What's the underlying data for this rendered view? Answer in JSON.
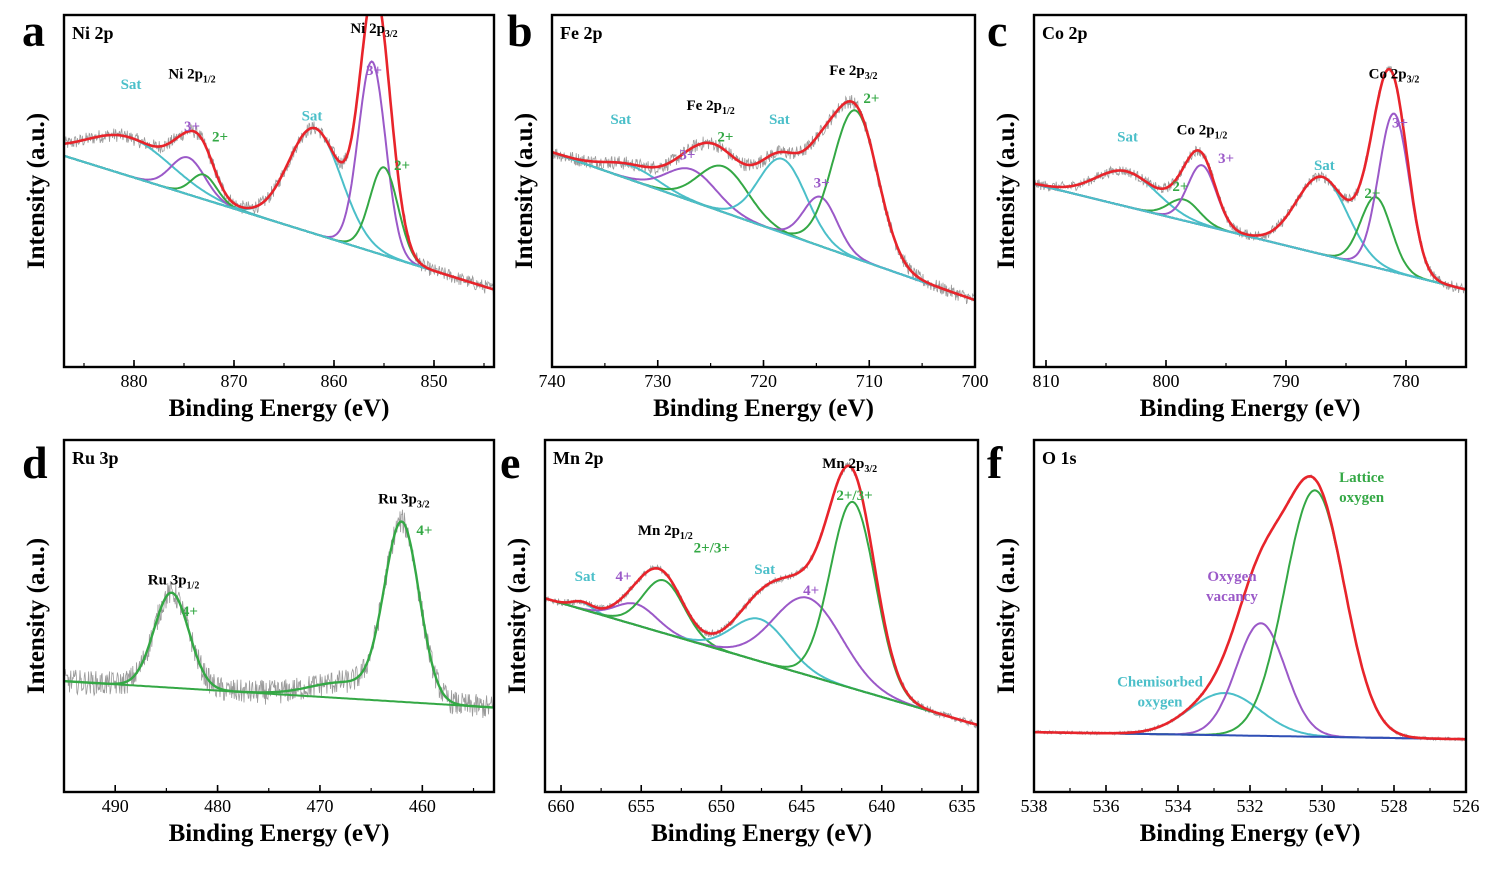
{
  "colors": {
    "envelope": "#e8242b",
    "purple": "#9b59c8",
    "green": "#34a845",
    "cyan": "#4bbfc9",
    "blue": "#2f4fb5",
    "raw": "#9a9a9a",
    "axis": "#000000"
  },
  "chart_data": [
    {
      "id": "a",
      "type": "line",
      "title": "Ni 2p",
      "xlabel": "Binding Energy (eV)",
      "ylabel": "Intensity (a.u.)",
      "xlim": [
        887,
        844
      ],
      "ylim": [
        0,
        1
      ],
      "xticks": [
        880,
        870,
        860,
        850
      ],
      "baseline": [
        [
          887,
          0.6
        ],
        [
          844,
          0.22
        ]
      ],
      "noise": 0.02,
      "components": [
        {
          "name": "Sat",
          "color": "cyan",
          "center": 880.5,
          "amp": 0.11,
          "fwhm": 10.0
        },
        {
          "name": "3+",
          "color": "purple",
          "center": 874.6,
          "amp": 0.105,
          "fwhm": 4.0
        },
        {
          "name": "2+",
          "color": "green",
          "center": 873.0,
          "amp": 0.07,
          "fwhm": 3.0
        },
        {
          "name": "Sat",
          "color": "cyan",
          "center": 861.9,
          "amp": 0.3,
          "fwhm": 6.2
        },
        {
          "name": "3+",
          "color": "purple",
          "center": 856.2,
          "amp": 0.54,
          "fwhm": 3.2
        },
        {
          "name": "2+",
          "color": "green",
          "center": 855.0,
          "amp": 0.25,
          "fwhm": 3.3
        }
      ],
      "annotations": [
        {
          "text": "Sat",
          "color": "cyan",
          "x": 880.3,
          "y": 0.79
        },
        {
          "text": "3+",
          "color": "purple",
          "x": 874.2,
          "y": 0.67
        },
        {
          "text": "2+",
          "color": "green",
          "x": 871.4,
          "y": 0.64
        },
        {
          "text": "Sat",
          "color": "cyan",
          "x": 862.2,
          "y": 0.7
        },
        {
          "text": "3+",
          "color": "purple",
          "x": 856.0,
          "y": 0.83
        },
        {
          "text": "2+",
          "color": "green",
          "x": 853.2,
          "y": 0.56
        }
      ],
      "peak_labels": [
        {
          "main": "Ni 2p",
          "sub": "1/2",
          "x": 874.2,
          "y": 0.82
        },
        {
          "main": "Ni 2p",
          "sub": "3/2",
          "x": 856.0,
          "y": 1.05
        }
      ]
    },
    {
      "id": "b",
      "type": "line",
      "title": "Fe 2p",
      "xlabel": "Binding Energy (eV)",
      "ylabel": "Intensity (a.u.)",
      "xlim": [
        740,
        700
      ],
      "ylim": [
        0,
        1
      ],
      "xticks": [
        740,
        730,
        720,
        710,
        700
      ],
      "baseline": [
        [
          740,
          0.61
        ],
        [
          700,
          0.19
        ]
      ],
      "noise": 0.02,
      "components": [
        {
          "name": "Sat",
          "color": "cyan",
          "center": 732.5,
          "amp": 0.04,
          "fwhm": 6.0
        },
        {
          "name": "3+",
          "color": "purple",
          "center": 726.8,
          "amp": 0.09,
          "fwhm": 5.5
        },
        {
          "name": "2+",
          "color": "green",
          "center": 723.8,
          "amp": 0.13,
          "fwhm": 5.5
        },
        {
          "name": "Sat",
          "color": "cyan",
          "center": 718.2,
          "amp": 0.21,
          "fwhm": 5.3
        },
        {
          "name": "3+",
          "color": "purple",
          "center": 714.6,
          "amp": 0.14,
          "fwhm": 3.7
        },
        {
          "name": "2+",
          "color": "green",
          "center": 711.3,
          "amp": 0.42,
          "fwhm": 5.0
        }
      ],
      "annotations": [
        {
          "text": "Sat",
          "color": "cyan",
          "x": 733.5,
          "y": 0.69
        },
        {
          "text": "3+",
          "color": "purple",
          "x": 727.2,
          "y": 0.59
        },
        {
          "text": "2+",
          "color": "green",
          "x": 723.6,
          "y": 0.64
        },
        {
          "text": "Sat",
          "color": "cyan",
          "x": 718.5,
          "y": 0.69
        },
        {
          "text": "3+",
          "color": "purple",
          "x": 714.5,
          "y": 0.51
        },
        {
          "text": "2+",
          "color": "green",
          "x": 709.8,
          "y": 0.75
        }
      ],
      "peak_labels": [
        {
          "main": "Fe 2p",
          "sub": "1/2",
          "x": 725.0,
          "y": 0.73
        },
        {
          "main": "Fe 2p",
          "sub": "3/2",
          "x": 711.5,
          "y": 0.83
        }
      ]
    },
    {
      "id": "c",
      "type": "line",
      "title": "Co 2p",
      "xlabel": "Binding Energy (eV)",
      "ylabel": "Intensity (a.u.)",
      "xlim": [
        811,
        775
      ],
      "ylim": [
        0,
        1
      ],
      "xticks": [
        810,
        800,
        790,
        780
      ],
      "baseline": [
        [
          811,
          0.52
        ],
        [
          775,
          0.22
        ]
      ],
      "noise": 0.015,
      "components": [
        {
          "name": "Sat",
          "color": "cyan",
          "center": 803.3,
          "amp": 0.1,
          "fwhm": 6.0
        },
        {
          "name": "2+",
          "color": "green",
          "center": 798.5,
          "amp": 0.06,
          "fwhm": 3.0
        },
        {
          "name": "3+",
          "color": "purple",
          "center": 797.0,
          "amp": 0.17,
          "fwhm": 2.8
        },
        {
          "name": "Sat",
          "color": "cyan",
          "center": 787.0,
          "amp": 0.22,
          "fwhm": 5.0
        },
        {
          "name": "2+",
          "color": "green",
          "center": 782.5,
          "amp": 0.2,
          "fwhm": 3.0
        },
        {
          "name": "3+",
          "color": "purple",
          "center": 781.0,
          "amp": 0.45,
          "fwhm": 3.0
        }
      ],
      "annotations": [
        {
          "text": "Sat",
          "color": "cyan",
          "x": 803.2,
          "y": 0.64
        },
        {
          "text": "2+",
          "color": "green",
          "x": 798.8,
          "y": 0.5
        },
        {
          "text": "3+",
          "color": "purple",
          "x": 795.0,
          "y": 0.58
        },
        {
          "text": "Sat",
          "color": "cyan",
          "x": 786.8,
          "y": 0.56
        },
        {
          "text": "2+",
          "color": "green",
          "x": 782.8,
          "y": 0.48
        },
        {
          "text": "3+",
          "color": "purple",
          "x": 780.5,
          "y": 0.68
        }
      ],
      "peak_labels": [
        {
          "main": "Co 2p",
          "sub": "1/2",
          "x": 797.0,
          "y": 0.66
        },
        {
          "main": "Co 2p",
          "sub": "3/2",
          "x": 781.0,
          "y": 0.82
        }
      ]
    },
    {
      "id": "d",
      "type": "line",
      "title": "Ru 3p",
      "xlabel": "Binding Energy (eV)",
      "ylabel": "Intensity (a.u.)",
      "xlim": [
        495,
        453
      ],
      "ylim": [
        0,
        1
      ],
      "xticks": [
        490,
        480,
        470,
        460
      ],
      "baseline": [
        [
          495,
          0.315
        ],
        [
          453,
          0.24
        ]
      ],
      "noise": 0.035,
      "components": [
        {
          "name": "4+",
          "color": "green",
          "center": 484.5,
          "amp": 0.27,
          "fwhm": 4.0
        },
        {
          "name": "4+",
          "color": "green",
          "center": 462.0,
          "amp": 0.5,
          "fwhm": 4.0
        },
        {
          "name": "step",
          "color": "green",
          "center": 467.5,
          "amp": 0.045,
          "fwhm": 8.0
        }
      ],
      "annotations": [
        {
          "text": "4+",
          "color": "green",
          "x": 482.7,
          "y": 0.5
        },
        {
          "text": "4+",
          "color": "green",
          "x": 459.8,
          "y": 0.73
        }
      ],
      "peak_labels": [
        {
          "main": "Ru 3p",
          "sub": "1/2",
          "x": 484.3,
          "y": 0.59
        },
        {
          "main": "Ru 3p",
          "sub": "3/2",
          "x": 461.8,
          "y": 0.82
        }
      ]
    },
    {
      "id": "e",
      "type": "line",
      "title": "Mn 2p",
      "xlabel": "Binding Energy (eV)",
      "ylabel": "Intensity (a.u.)",
      "xlim": [
        661,
        634
      ],
      "ylim": [
        0,
        1
      ],
      "xticks": [
        660,
        655,
        650,
        645,
        640,
        635
      ],
      "baseline": [
        [
          661,
          0.55
        ],
        [
          634,
          0.19
        ]
      ],
      "noise": 0.01,
      "components": [
        {
          "name": "Sat",
          "color": "cyan",
          "center": 658.7,
          "amp": 0.02,
          "fwhm": 1.5
        },
        {
          "name": "4+",
          "color": "purple",
          "center": 655.3,
          "amp": 0.06,
          "fwhm": 3.0
        },
        {
          "name": "2+/3+",
          "color": "green",
          "center": 653.6,
          "amp": 0.15,
          "fwhm": 3.0
        },
        {
          "name": "Sat",
          "color": "cyan",
          "center": 647.6,
          "amp": 0.12,
          "fwhm": 4.0
        },
        {
          "name": "4+",
          "color": "purple",
          "center": 644.6,
          "amp": 0.22,
          "fwhm": 5.0
        },
        {
          "name": "2+/3+",
          "color": "green",
          "center": 641.8,
          "amp": 0.53,
          "fwhm": 3.3
        }
      ],
      "annotations": [
        {
          "text": "Sat",
          "color": "cyan",
          "x": 658.5,
          "y": 0.6
        },
        {
          "text": "4+",
          "color": "purple",
          "x": 656.1,
          "y": 0.6
        },
        {
          "text": "2+/3+",
          "color": "green",
          "x": 650.6,
          "y": 0.68
        },
        {
          "text": "Sat",
          "color": "cyan",
          "x": 647.3,
          "y": 0.62
        },
        {
          "text": "4+",
          "color": "purple",
          "x": 644.4,
          "y": 0.56
        },
        {
          "text": "2+/3+",
          "color": "green",
          "x": 641.7,
          "y": 0.83
        }
      ],
      "peak_labels": [
        {
          "main": "Mn 2p",
          "sub": "1/2",
          "x": 653.5,
          "y": 0.73
        },
        {
          "main": "Mn 2p",
          "sub": "3/2",
          "x": 642.0,
          "y": 0.92
        }
      ]
    },
    {
      "id": "f",
      "type": "line",
      "title": "O 1s",
      "xlabel": "Binding Energy (eV)",
      "ylabel": "Intensity (a.u.)",
      "xlim": [
        538,
        526
      ],
      "ylim": [
        0,
        1
      ],
      "xticks": [
        538,
        536,
        534,
        532,
        530,
        528,
        526
      ],
      "baseline": [
        [
          538,
          0.17
        ],
        [
          526,
          0.15
        ]
      ],
      "noise": 0.005,
      "components": [
        {
          "name": "Chemisorbed oxygen",
          "color": "cyan",
          "center": 532.7,
          "amp": 0.12,
          "fwhm": 2.3
        },
        {
          "name": "Oxygen vacancy",
          "color": "purple",
          "center": 531.7,
          "amp": 0.32,
          "fwhm": 1.6
        },
        {
          "name": "Lattice oxygen",
          "color": "green",
          "center": 530.2,
          "amp": 0.7,
          "fwhm": 1.95
        }
      ],
      "annotations": [
        {
          "text": [
            "Chemisorbed",
            "oxygen"
          ],
          "color": "cyan",
          "x": 534.5,
          "y": 0.3
        },
        {
          "text": [
            "Oxygen",
            "vacancy"
          ],
          "color": "purple",
          "x": 532.5,
          "y": 0.6
        },
        {
          "text": [
            "Lattice",
            "oxygen"
          ],
          "color": "green",
          "x": 528.9,
          "y": 0.88
        }
      ],
      "peak_labels": []
    }
  ]
}
